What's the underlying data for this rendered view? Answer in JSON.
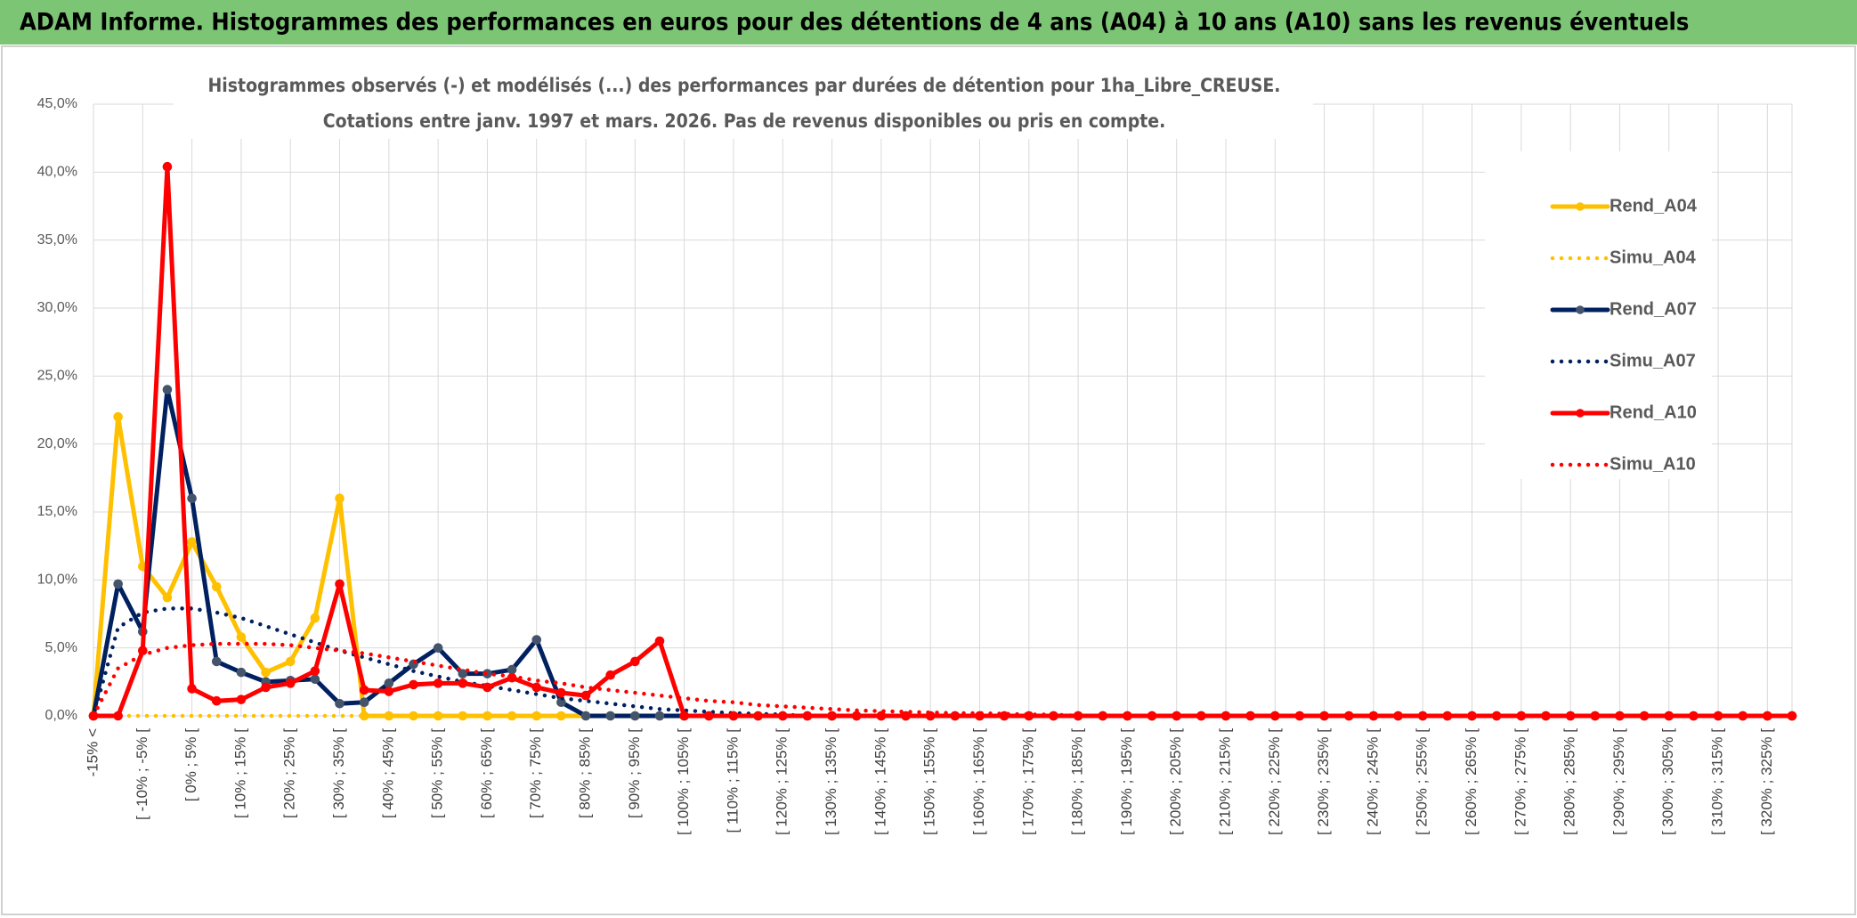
{
  "header": {
    "title": "ADAM Informe. Histogrammes des performances en euros pour des détentions de 4 ans (A04) à 10 ans (A10) sans les revenus éventuels"
  },
  "chart_data": {
    "type": "line",
    "title": "Histogrammes observés (-) et modélisés (...) des performances par durées de détention pour 1ha_Libre_CREUSE.",
    "subtitle": "Cotations entre janv. 1997 et mars. 2026. Pas de revenus disponibles ou pris en compte.",
    "categories": [
      "-15% <",
      null,
      "[ -10% ; -5% [",
      null,
      "[ 0% ; 5% [",
      null,
      "[ 10% ; 15% [",
      null,
      "[ 20% ; 25% [",
      null,
      "[ 30% ; 35% [",
      null,
      "[ 40% ; 45% [",
      null,
      "[ 50% ; 55% [",
      null,
      "[ 60% ; 65% [",
      null,
      "[ 70% ; 75% [",
      null,
      "[ 80% ; 85% [",
      null,
      "[ 90% ; 95% [",
      null,
      "[ 100% ; 105% [",
      null,
      "[ 110% ; 115% [",
      null,
      "[ 120% ; 125% [",
      null,
      "[ 130% ; 135% [",
      null,
      "[ 140% ; 145% [",
      null,
      "[ 150% ; 155% [",
      null,
      "[ 160% ; 165% [",
      null,
      "[ 170% ; 175% [",
      null,
      "[ 180% ; 185% [",
      null,
      "[ 190% ; 195% [",
      null,
      "[ 200% ; 205% [",
      null,
      "[ 210% ; 215% [",
      null,
      "[ 220% ; 225% [",
      null,
      "[ 230% ; 235% [",
      null,
      "[ 240% ; 245% [",
      null,
      "[ 250% ; 255% [",
      null,
      "[ 260% ; 265% [",
      null,
      "[ 270% ; 275% [",
      null,
      "[ 280% ; 285% [",
      null,
      "[ 290% ; 295% [",
      null,
      "[ 300% ; 305% [",
      null,
      "[ 310% ; 315% [",
      null,
      "[ 320% ; 325% [",
      null
    ],
    "series": [
      {
        "name": "Rend_A04",
        "color": "#FFC000",
        "line_style": "solid",
        "markers": true,
        "marker_color": "#FFC000",
        "values": [
          0,
          22,
          11,
          8.7,
          12.8,
          9.5,
          5.8,
          3.2,
          4,
          7.2,
          16,
          0,
          0,
          0,
          0,
          0,
          0,
          0,
          0,
          0,
          0,
          0,
          0,
          0,
          0,
          0,
          0,
          0,
          0,
          0,
          0,
          0,
          0,
          0,
          0,
          0,
          0,
          0,
          0,
          0,
          0,
          0,
          0,
          0,
          0,
          0,
          0,
          0,
          0,
          0,
          0,
          0,
          0,
          0,
          0,
          0,
          0,
          0,
          0,
          0,
          0,
          0,
          0,
          0,
          0,
          0,
          0,
          0,
          0,
          0
        ]
      },
      {
        "name": "Simu_A04",
        "color": "#FFC000",
        "line_style": "dotted",
        "markers": false,
        "values": [
          0,
          0,
          0,
          0,
          0,
          0,
          0,
          0,
          0,
          0,
          0,
          0,
          0,
          0,
          0,
          0,
          0,
          0,
          0,
          0,
          0,
          0,
          0,
          0,
          0,
          0,
          0,
          0,
          0,
          0,
          0,
          0,
          0,
          0,
          0,
          0,
          0,
          0,
          0,
          0,
          0,
          0,
          0,
          0,
          0,
          0,
          0,
          0,
          0,
          0,
          0,
          0,
          0,
          0,
          0,
          0,
          0,
          0,
          0,
          0,
          0,
          0,
          0,
          0,
          0,
          0,
          0,
          0,
          0,
          0
        ]
      },
      {
        "name": "Rend_A07",
        "color": "#002060",
        "line_style": "solid",
        "markers": true,
        "marker_color": "#44546A",
        "values": [
          0,
          9.7,
          6.2,
          24,
          16,
          4,
          3.2,
          2.5,
          2.6,
          2.7,
          0.9,
          1,
          2.4,
          3.8,
          5,
          3.1,
          3.1,
          3.4,
          5.6,
          1,
          0,
          0,
          0,
          0,
          0,
          0,
          0,
          0,
          0,
          0,
          0,
          0,
          0,
          0,
          0,
          0,
          0,
          0,
          0,
          0,
          0,
          0,
          0,
          0,
          0,
          0,
          0,
          0,
          0,
          0,
          0,
          0,
          0,
          0,
          0,
          0,
          0,
          0,
          0,
          0,
          0,
          0,
          0,
          0,
          0,
          0,
          0,
          0,
          0,
          0
        ]
      },
      {
        "name": "Simu_A07",
        "color": "#002060",
        "line_style": "dotted",
        "markers": false,
        "values": [
          0,
          6.5,
          7.6,
          7.9,
          7.9,
          7.6,
          7.2,
          6.6,
          6,
          5.4,
          4.8,
          4.3,
          3.8,
          3.3,
          2.9,
          2.5,
          2.2,
          1.9,
          1.6,
          1.3,
          1.1,
          0.9,
          0.7,
          0.5,
          0.4,
          0.3,
          0.2,
          0.15,
          0.1,
          0,
          0,
          0,
          0,
          0,
          0,
          0,
          0,
          0,
          0,
          0,
          0,
          0,
          0,
          0,
          0,
          0,
          0,
          0,
          0,
          0,
          0,
          0,
          0,
          0,
          0,
          0,
          0,
          0,
          0,
          0,
          0,
          0,
          0,
          0,
          0,
          0,
          0,
          0,
          0,
          0
        ]
      },
      {
        "name": "Rend_A10",
        "color": "#FF0000",
        "line_style": "solid",
        "markers": true,
        "marker_color": "#FF0000",
        "values": [
          0,
          0,
          4.8,
          40.4,
          2,
          1.1,
          1.2,
          2.1,
          2.4,
          3.3,
          9.7,
          1.9,
          1.8,
          2.3,
          2.4,
          2.4,
          2.1,
          2.8,
          2.1,
          1.7,
          1.5,
          3,
          4,
          5.5,
          0,
          0,
          0,
          0,
          0,
          0,
          0,
          0,
          0,
          0,
          0,
          0,
          0,
          0,
          0,
          0,
          0,
          0,
          0,
          0,
          0,
          0,
          0,
          0,
          0,
          0,
          0,
          0,
          0,
          0,
          0,
          0,
          0,
          0,
          0,
          0,
          0,
          0,
          0,
          0,
          0,
          0,
          0,
          0,
          0,
          0
        ]
      },
      {
        "name": "Simu_A10",
        "color": "#FF0000",
        "line_style": "dotted",
        "markers": false,
        "values": [
          0,
          3.5,
          4.5,
          5,
          5.2,
          5.3,
          5.3,
          5.3,
          5.2,
          5,
          4.8,
          4.6,
          4.3,
          4,
          3.7,
          3.4,
          3.1,
          2.9,
          2.6,
          2.4,
          2.1,
          1.9,
          1.7,
          1.5,
          1.3,
          1.1,
          1,
          0.8,
          0.7,
          0.6,
          0.5,
          0.4,
          0.35,
          0.3,
          0.25,
          0.2,
          0.2,
          0.15,
          0.1,
          0.1,
          0,
          0,
          0,
          0,
          0,
          0,
          0,
          0,
          0,
          0,
          0,
          0,
          0,
          0,
          0,
          0,
          0,
          0,
          0,
          0,
          0,
          0,
          0,
          0,
          0,
          0,
          0,
          0,
          0,
          0
        ]
      }
    ],
    "ylim": [
      0,
      45
    ],
    "yticks": [
      {
        "value": 0,
        "label": "0,0%"
      },
      {
        "value": 5,
        "label": "5,0%"
      },
      {
        "value": 10,
        "label": "10,0%"
      },
      {
        "value": 15,
        "label": "15,0%"
      },
      {
        "value": 20,
        "label": "20,0%"
      },
      {
        "value": 25,
        "label": "25,0%"
      },
      {
        "value": 30,
        "label": "30,0%"
      },
      {
        "value": 35,
        "label": "35,0%"
      },
      {
        "value": 40,
        "label": "40,0%"
      },
      {
        "value": 45,
        "label": "45,0%"
      }
    ],
    "grid": true,
    "legend": "right"
  }
}
